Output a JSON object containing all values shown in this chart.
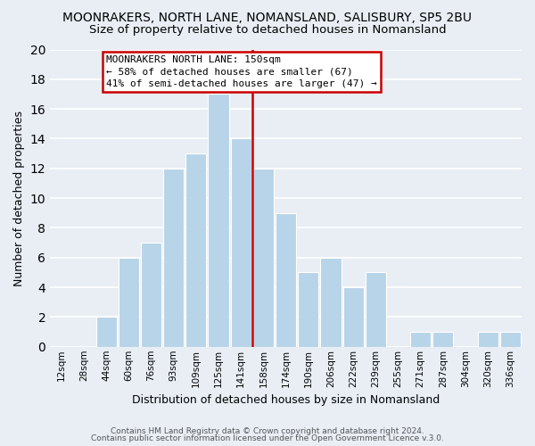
{
  "title1": "MOONRAKERS, NORTH LANE, NOMANSLAND, SALISBURY, SP5 2BU",
  "title2": "Size of property relative to detached houses in Nomansland",
  "xlabel": "Distribution of detached houses by size in Nomansland",
  "ylabel": "Number of detached properties",
  "footer1": "Contains HM Land Registry data © Crown copyright and database right 2024.",
  "footer2": "Contains public sector information licensed under the Open Government Licence v.3.0.",
  "bin_labels": [
    "12sqm",
    "28sqm",
    "44sqm",
    "60sqm",
    "76sqm",
    "93sqm",
    "109sqm",
    "125sqm",
    "141sqm",
    "158sqm",
    "174sqm",
    "190sqm",
    "206sqm",
    "222sqm",
    "239sqm",
    "255sqm",
    "271sqm",
    "287sqm",
    "304sqm",
    "320sqm",
    "336sqm"
  ],
  "bar_values": [
    0,
    0,
    2,
    6,
    7,
    12,
    13,
    17,
    14,
    12,
    9,
    5,
    6,
    4,
    5,
    0,
    1,
    1,
    0,
    1,
    1
  ],
  "bar_color": "#b8d4e8",
  "bar_edge_color": "#ffffff",
  "vline_x": 8.5,
  "vline_color": "#cc0000",
  "ylim": [
    0,
    20
  ],
  "yticks": [
    0,
    2,
    4,
    6,
    8,
    10,
    12,
    14,
    16,
    18,
    20
  ],
  "annotation_title": "MOONRAKERS NORTH LANE: 150sqm",
  "annotation_line1": "← 58% of detached houses are smaller (67)",
  "annotation_line2": "41% of semi-detached houses are larger (47) →",
  "annotation_box_color": "#ffffff",
  "annotation_box_edge": "#cc0000",
  "background_color": "#e8eef4",
  "grid_color": "#ffffff",
  "title1_fontsize": 10,
  "title2_fontsize": 9.5,
  "xlabel_fontsize": 9,
  "ylabel_fontsize": 9
}
